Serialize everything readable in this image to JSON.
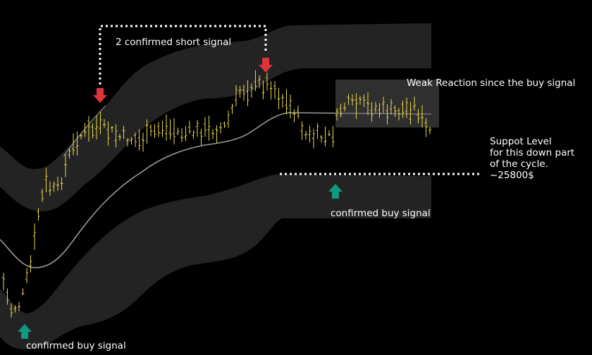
{
  "annotations": {
    "short_signal": "2 confirmed short signal",
    "weak_reaction": "Weak Reaction since the buy signal",
    "support_level": [
      "Suppot Level",
      "for this down part",
      "of the cycle.",
      "~25800$"
    ],
    "buy_signal_right": "confirmed buy signal",
    "buy_signal_left": "confirmed buy signal"
  }
}
